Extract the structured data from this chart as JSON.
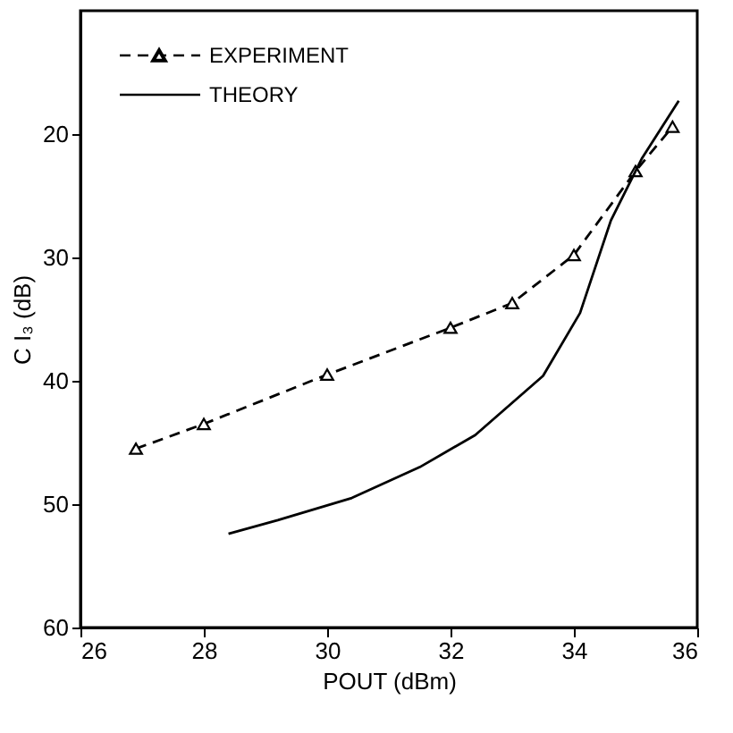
{
  "chart_data": {
    "type": "line",
    "xlabel": "POUT (dBm)",
    "ylabel": "C I₃ (dB)",
    "xlim": [
      26,
      36
    ],
    "xticks": [
      26,
      28,
      30,
      32,
      34,
      36
    ],
    "ylim": [
      60,
      10
    ],
    "yticks": [
      20,
      30,
      40,
      50,
      60
    ],
    "grid": false,
    "legend": "top left",
    "series": [
      {
        "name": "EXPERIMENT",
        "color": "#000000",
        "line_style": "dashed",
        "marker": "triangle",
        "x": [
          26.9,
          28,
          30,
          32,
          33,
          34,
          35,
          35.6
        ],
        "values": [
          45.5,
          43.5,
          39.5,
          35.7,
          33.7,
          29.8,
          23,
          19.4
        ]
      },
      {
        "name": "THEORY",
        "color": "#000000",
        "line_style": "solid",
        "marker": "none",
        "x": [
          28.4,
          29.2,
          30.4,
          31.5,
          32.4,
          33.5,
          34.1,
          34.6,
          35.1,
          35.7
        ],
        "values": [
          52.4,
          51.3,
          49.5,
          47.0,
          44.4,
          39.6,
          34.5,
          27,
          22,
          17.3
        ]
      }
    ]
  }
}
